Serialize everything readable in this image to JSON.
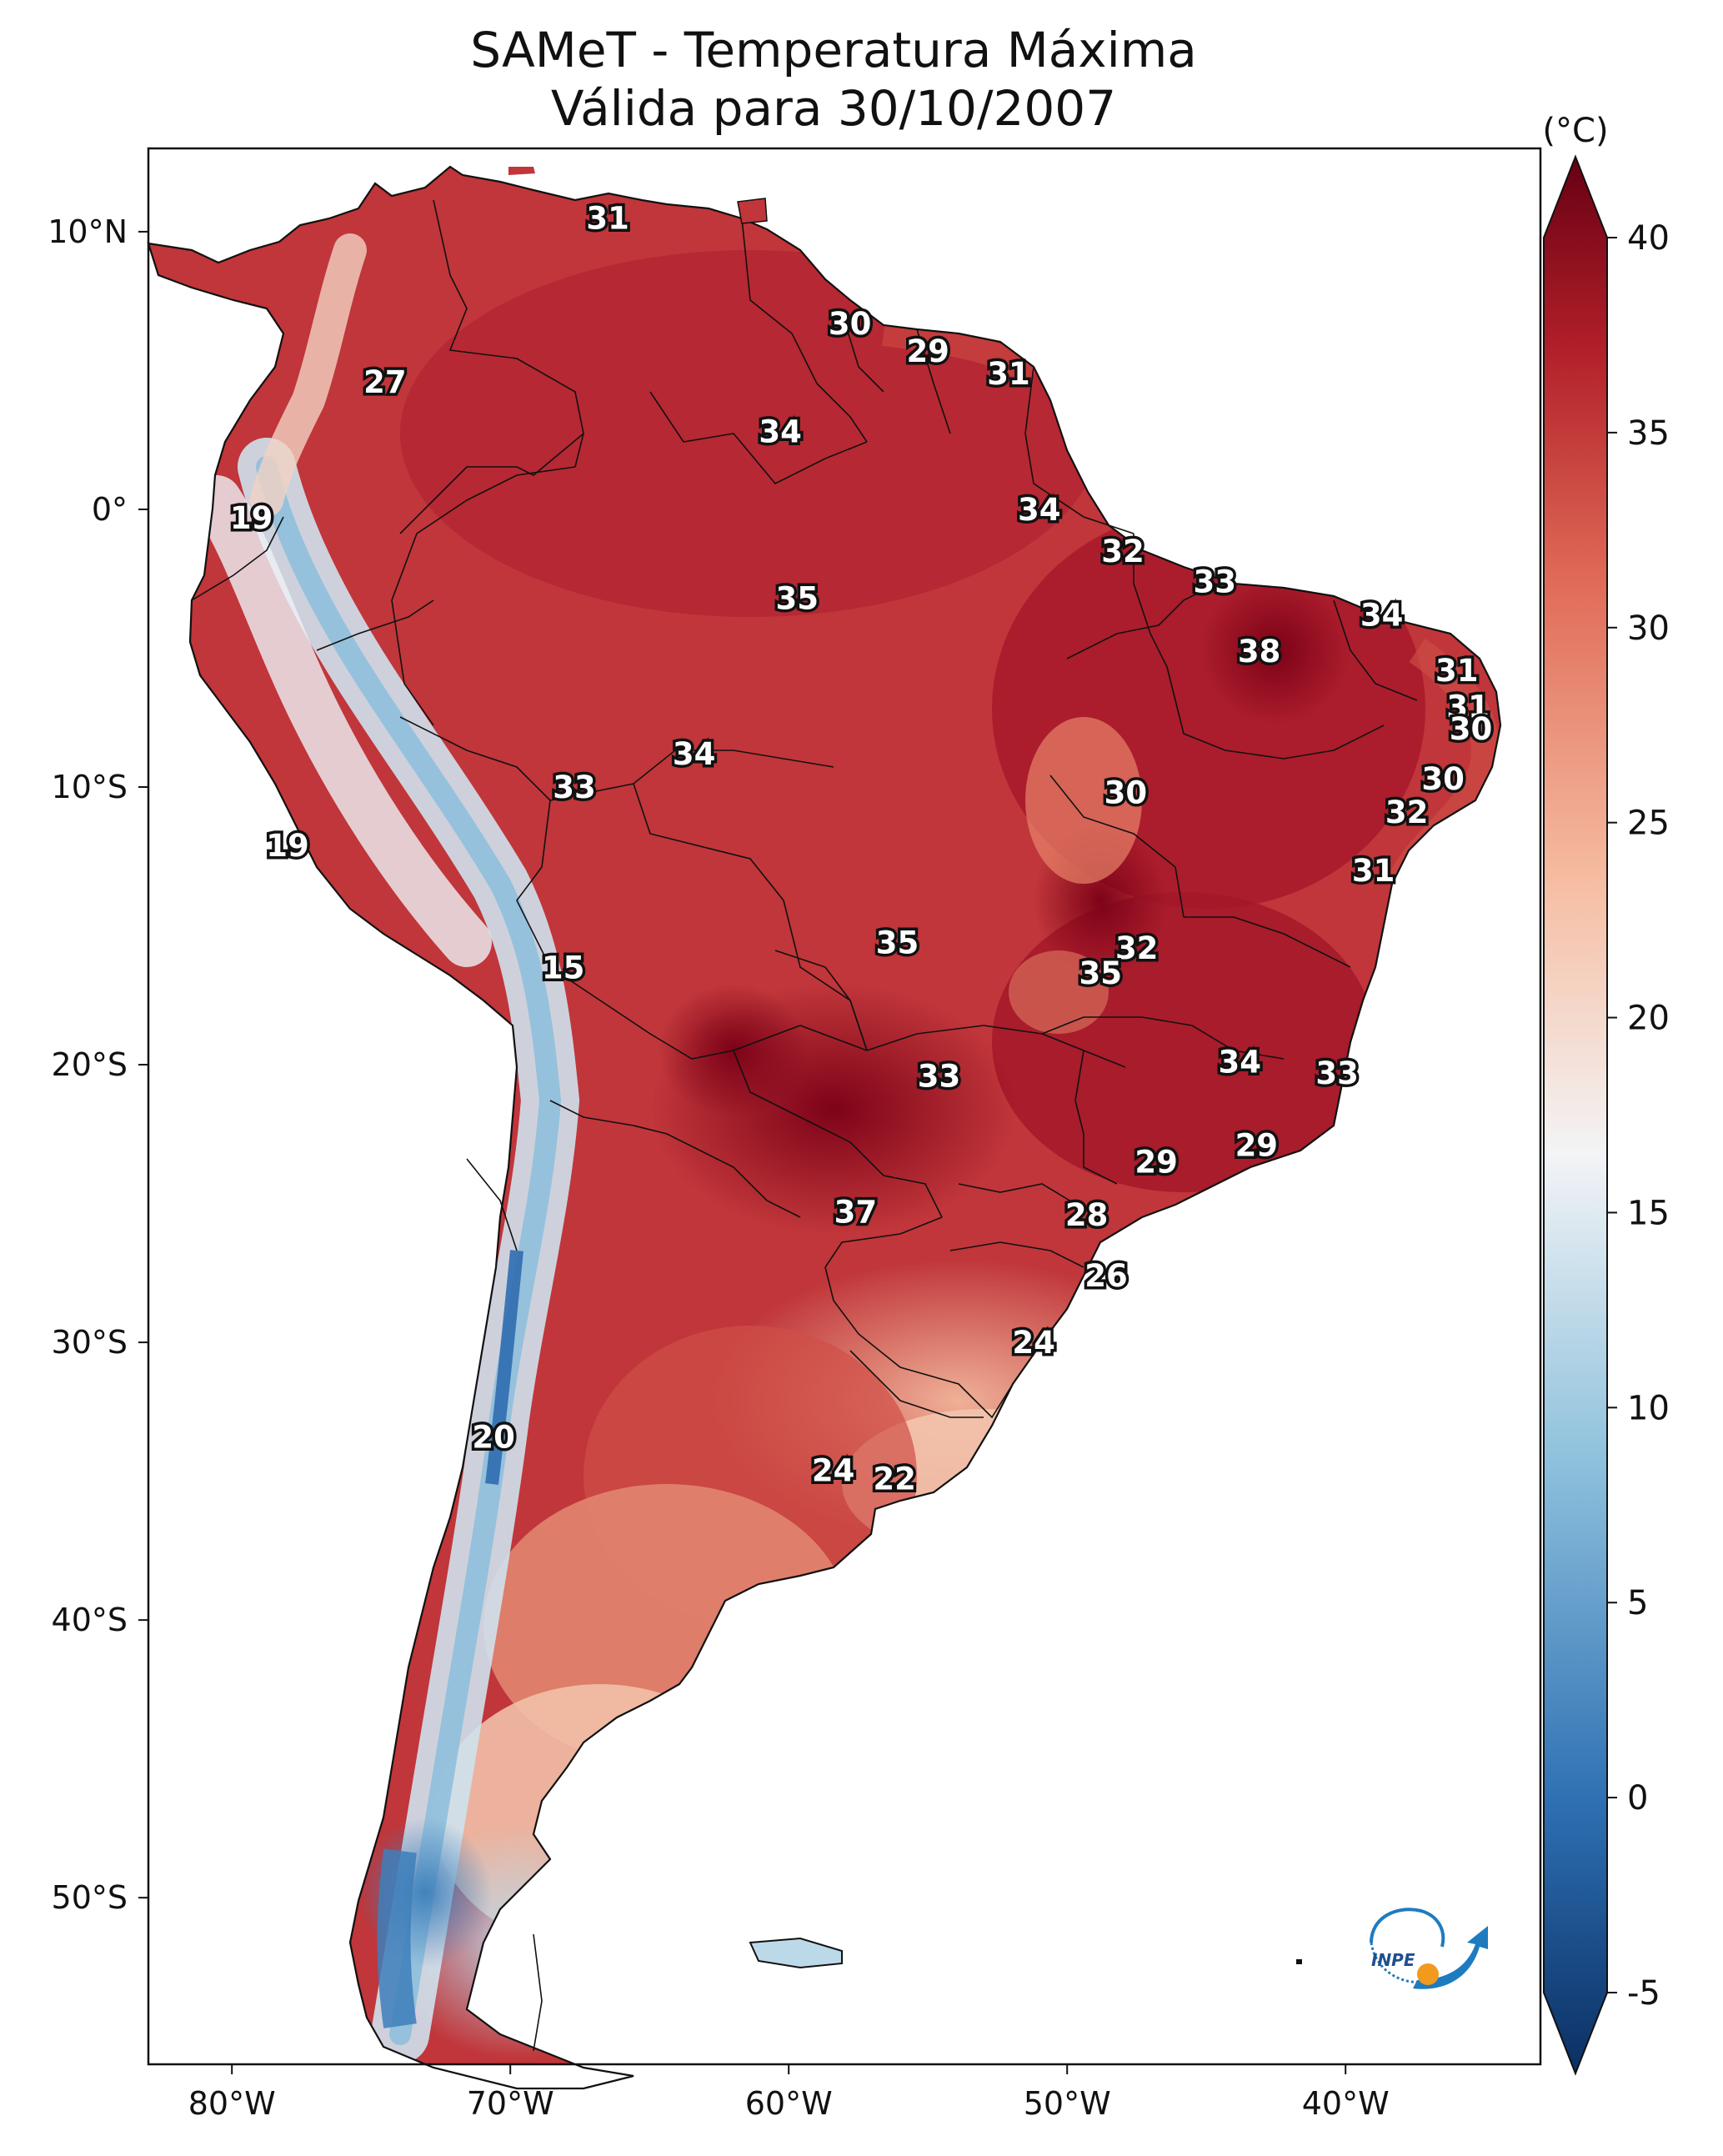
{
  "title_line1": "SAMeT - Temperatura Máxima",
  "title_line2": "Válida para 30/10/2007",
  "unit_label": "(°C)",
  "lon_ticks": [
    "80°W",
    "70°W",
    "60°W",
    "50°W",
    "40°W"
  ],
  "lat_ticks": [
    "10°N",
    "0°",
    "10°S",
    "20°S",
    "30°S",
    "40°S",
    "50°S"
  ],
  "colorbar": {
    "ticks": [
      "40",
      "35",
      "30",
      "25",
      "20",
      "15",
      "10",
      "5",
      "0",
      "-5"
    ],
    "stops": [
      "#0b2f63",
      "#2d6fb2",
      "#8ec1dd",
      "#f3f4f6",
      "#f6bea3",
      "#e06a57",
      "#b11f29",
      "#670013"
    ]
  },
  "logo_text": "INPE",
  "chart_data": {
    "type": "map",
    "title": "SAMeT - Temperatura Máxima — Válida para 30/10/2007",
    "unit": "°C",
    "colorbar_range": [
      -5,
      40
    ],
    "lon_range": [
      -83,
      -33
    ],
    "lat_range": [
      -56,
      13
    ],
    "station_values": [
      {
        "lon": -66.5,
        "lat": 10.5,
        "value": "31"
      },
      {
        "lon": -57.8,
        "lat": 6.7,
        "value": "30"
      },
      {
        "lon": -55.0,
        "lat": 5.7,
        "value": "29"
      },
      {
        "lon": -52.1,
        "lat": 4.9,
        "value": "31"
      },
      {
        "lon": -74.5,
        "lat": 4.6,
        "value": "27"
      },
      {
        "lon": -60.3,
        "lat": 2.8,
        "value": "34"
      },
      {
        "lon": -51.0,
        "lat": 0.0,
        "value": "34"
      },
      {
        "lon": -79.3,
        "lat": -0.3,
        "value": "19"
      },
      {
        "lon": -48.0,
        "lat": -1.5,
        "value": "32"
      },
      {
        "lon": -44.7,
        "lat": -2.6,
        "value": "33"
      },
      {
        "lon": -59.7,
        "lat": -3.2,
        "value": "35"
      },
      {
        "lon": -38.7,
        "lat": -3.8,
        "value": "34"
      },
      {
        "lon": -43.1,
        "lat": -5.1,
        "value": "38"
      },
      {
        "lon": -36.0,
        "lat": -5.8,
        "value": "31"
      },
      {
        "lon": -35.6,
        "lat": -7.1,
        "value": "31"
      },
      {
        "lon": -35.5,
        "lat": -7.9,
        "value": "30"
      },
      {
        "lon": -63.4,
        "lat": -8.8,
        "value": "34"
      },
      {
        "lon": -67.7,
        "lat": -10.0,
        "value": "33"
      },
      {
        "lon": -47.9,
        "lat": -10.2,
        "value": "30"
      },
      {
        "lon": -36.5,
        "lat": -9.7,
        "value": "30"
      },
      {
        "lon": -37.8,
        "lat": -10.9,
        "value": "32"
      },
      {
        "lon": -78.0,
        "lat": -12.1,
        "value": "19"
      },
      {
        "lon": -39.0,
        "lat": -13.0,
        "value": "31"
      },
      {
        "lon": -56.1,
        "lat": -15.6,
        "value": "35"
      },
      {
        "lon": -47.5,
        "lat": -15.8,
        "value": "32"
      },
      {
        "lon": -48.8,
        "lat": -16.7,
        "value": "35"
      },
      {
        "lon": -68.1,
        "lat": -16.5,
        "value": "15"
      },
      {
        "lon": -54.6,
        "lat": -20.4,
        "value": "33"
      },
      {
        "lon": -43.8,
        "lat": -19.9,
        "value": "34"
      },
      {
        "lon": -40.3,
        "lat": -20.3,
        "value": "33"
      },
      {
        "lon": -46.8,
        "lat": -23.5,
        "value": "29"
      },
      {
        "lon": -43.2,
        "lat": -22.9,
        "value": "29"
      },
      {
        "lon": -57.6,
        "lat": -25.3,
        "value": "37"
      },
      {
        "lon": -49.3,
        "lat": -25.4,
        "value": "28"
      },
      {
        "lon": -48.6,
        "lat": -27.6,
        "value": "26"
      },
      {
        "lon": -51.2,
        "lat": -30.0,
        "value": "24"
      },
      {
        "lon": -70.6,
        "lat": -33.4,
        "value": "20"
      },
      {
        "lon": -58.4,
        "lat": -34.6,
        "value": "24"
      },
      {
        "lon": -56.2,
        "lat": -34.9,
        "value": "22"
      }
    ]
  }
}
